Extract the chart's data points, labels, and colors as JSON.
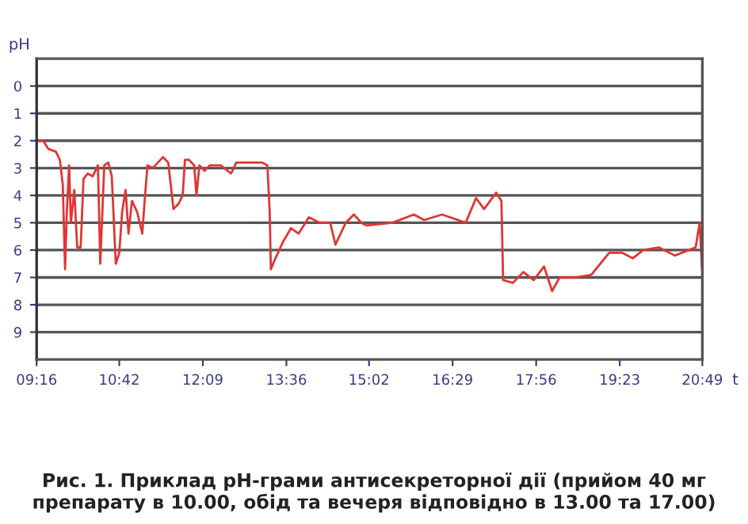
{
  "chart_data": {
    "type": "line",
    "ylabel": "pH",
    "xlabel": "t",
    "annotations": [
      "Рис. 1. Приклад pH-грами антисекреторної дії (прийом 40 мг препарату в 10.00, обід та вечеря відповідно в 13.00 та 17.00)"
    ],
    "xlim": [
      9.2667,
      20.8167
    ],
    "xticks": [
      {
        "value": 9.2667,
        "label": "09:16"
      },
      {
        "value": 10.7,
        "label": "10:42"
      },
      {
        "value": 12.15,
        "label": "12:09"
      },
      {
        "value": 13.6,
        "label": "13:36"
      },
      {
        "value": 15.0333,
        "label": "15:02"
      },
      {
        "value": 16.4833,
        "label": "16:29"
      },
      {
        "value": 17.9333,
        "label": "17:56"
      },
      {
        "value": 19.3833,
        "label": "19:23"
      },
      {
        "value": 20.8167,
        "label": "20:49"
      }
    ],
    "ylim": [
      10,
      -1
    ],
    "yticks": [
      0,
      1,
      2,
      3,
      4,
      5,
      6,
      7,
      8,
      9
    ],
    "grid": "y",
    "legend": false,
    "marker": "none",
    "line_style": "solid",
    "series": [
      {
        "color": "#e03535",
        "x": [
          9.27,
          9.38,
          9.47,
          9.6,
          9.67,
          9.72,
          9.76,
          9.79,
          9.83,
          9.86,
          9.92,
          9.97,
          10.03,
          10.08,
          10.15,
          10.24,
          10.33,
          10.37,
          10.44,
          10.51,
          10.57,
          10.64,
          10.7,
          10.75,
          10.81,
          10.86,
          10.92,
          11.01,
          11.1,
          11.14,
          11.19,
          11.28,
          11.37,
          11.46,
          11.55,
          11.64,
          11.73,
          11.8,
          11.84,
          11.91,
          12.0,
          12.04,
          12.09,
          12.18,
          12.27,
          12.46,
          12.64,
          12.73,
          13.0,
          13.18,
          13.27,
          13.31,
          13.33,
          13.41,
          13.54,
          13.68,
          13.81,
          13.99,
          14.18,
          14.36,
          14.45,
          14.54,
          14.63,
          14.77,
          14.9,
          14.99,
          15.44,
          15.81,
          15.99,
          16.3,
          16.71,
          16.89,
          17.03,
          17.24,
          17.33,
          17.36,
          17.53,
          17.71,
          17.89,
          18.07,
          18.21,
          18.34,
          18.61,
          18.89,
          19.2,
          19.43,
          19.61,
          19.79,
          20.06,
          20.34,
          20.7,
          20.77,
          20.81
        ],
        "values": [
          2.0,
          2.0,
          2.3,
          2.4,
          2.7,
          3.6,
          6.7,
          4.6,
          2.9,
          5.0,
          3.8,
          5.9,
          5.9,
          3.4,
          3.2,
          3.3,
          2.9,
          6.5,
          2.9,
          2.8,
          3.3,
          6.5,
          6.1,
          4.6,
          3.8,
          5.4,
          4.2,
          4.6,
          5.4,
          4.2,
          2.9,
          3.0,
          2.8,
          2.6,
          2.8,
          4.5,
          4.3,
          4.0,
          2.7,
          2.7,
          2.9,
          4.0,
          2.9,
          3.1,
          2.9,
          2.9,
          3.2,
          2.8,
          2.8,
          2.8,
          2.9,
          4.6,
          6.7,
          6.3,
          5.7,
          5.2,
          5.4,
          4.8,
          5.0,
          5.0,
          5.8,
          5.4,
          5.0,
          4.7,
          5.0,
          5.1,
          5.0,
          4.7,
          4.9,
          4.7,
          5.0,
          4.1,
          4.5,
          3.9,
          4.2,
          7.1,
          7.2,
          6.8,
          7.1,
          6.6,
          7.5,
          7.0,
          7.0,
          6.9,
          6.1,
          6.1,
          6.3,
          6.0,
          5.9,
          6.2,
          5.9,
          5.0,
          6.7
        ]
      }
    ]
  }
}
